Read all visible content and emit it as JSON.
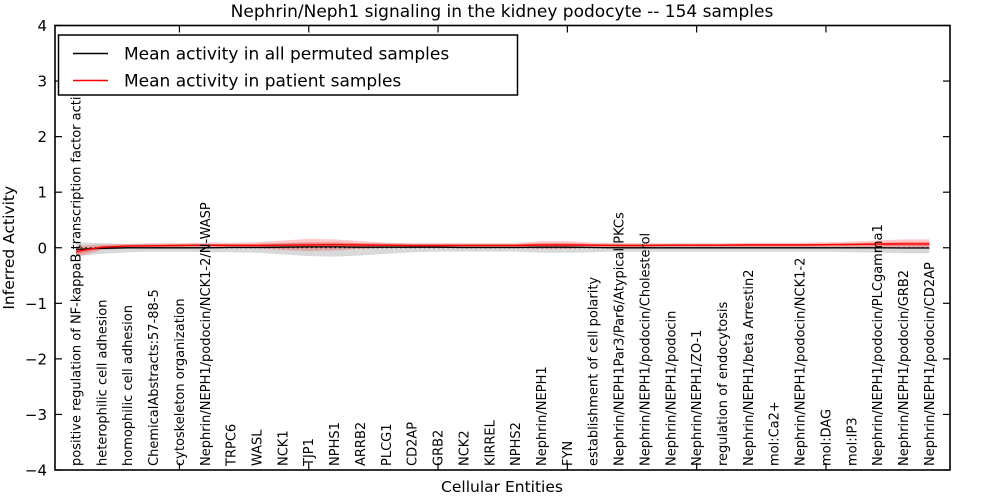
{
  "chart_data": {
    "type": "line",
    "title": "Nephrin/Neph1 signaling in the kidney podocyte -- 154 samples",
    "xlabel": "Cellular Entities",
    "ylabel": "Inferred Activity",
    "ylim": [
      -4,
      4
    ],
    "ytick_labels": [
      "4",
      "3",
      "2",
      "1",
      "0",
      "−1",
      "−2",
      "−3",
      "−4"
    ],
    "xtick_mark_indices": [
      4,
      9,
      14,
      19,
      24,
      29
    ],
    "grid": false,
    "zero_line": {
      "style": "dotted",
      "color": "#000000",
      "y": 0
    },
    "categories": [
      "positive regulation of NF-kappaB transcription factor activity",
      "heterophilic cell adhesion",
      "homophilic cell adhesion",
      "ChemicalAbstracts:57-88-5",
      "cytoskeleton organization",
      "Nephrin/NEPH1/podocin/NCK1-2/N-WASP",
      "TRPC6",
      "WASL",
      "NCK1",
      "TJP1",
      "NPHS1",
      "ARRB2",
      "PLCG1",
      "CD2AP",
      "GRB2",
      "NCK2",
      "KIRREL",
      "NPHS2",
      "Nephrin/NEPH1",
      "FYN",
      "establishment of cell polarity",
      "Nephrin/NEPH1Par3/Par6/Atypical PKCs",
      "Nephrin/NEPH1/podocin/Cholesterol",
      "Nephrin/NEPH1/podocin",
      "Nephrin/NEPH1/ZO-1",
      "regulation of endocytosis",
      "Nephrin/NEPH1/beta Arrestin2",
      "mol:Ca2+",
      "Nephrin/NEPH1/podocin/NCK1-2",
      "mol:DAG",
      "mol:IP3",
      "Nephrin/NEPH1/podocin/PLCgamma1",
      "Nephrin/NEPH1/podocin/GRB2",
      "Nephrin/NEPH1/podocin/CD2AP"
    ],
    "series": [
      {
        "name": "Mean activity in all permuted samples",
        "color": "#000000",
        "values": [
          -0.03,
          -0.01,
          0.0,
          0.0,
          0.0,
          0.0,
          0.005,
          0.005,
          0.01,
          0.015,
          0.015,
          0.01,
          0.01,
          0.01,
          0.01,
          0.005,
          0.005,
          0.005,
          0.01,
          0.01,
          0.005,
          0.0,
          0.0,
          0.0,
          0.0,
          0.0,
          0.0,
          0.0,
          0.0,
          0.0,
          0.0,
          0.0,
          -0.005,
          -0.005
        ]
      },
      {
        "name": "Mean activity in patient samples",
        "color": "#ff0000",
        "values": [
          -0.07,
          0.01,
          0.03,
          0.035,
          0.04,
          0.045,
          0.04,
          0.04,
          0.045,
          0.05,
          0.055,
          0.05,
          0.045,
          0.04,
          0.04,
          0.04,
          0.04,
          0.04,
          0.05,
          0.05,
          0.045,
          0.04,
          0.04,
          0.045,
          0.045,
          0.045,
          0.05,
          0.05,
          0.05,
          0.055,
          0.06,
          0.065,
          0.07,
          0.07
        ]
      }
    ],
    "bands": [
      {
        "name": "permuted-samples-spread",
        "color": "rgba(128,128,128,0.30)",
        "upper": [
          0.1,
          0.08,
          0.07,
          0.07,
          0.07,
          0.07,
          0.07,
          0.07,
          0.08,
          0.09,
          0.09,
          0.08,
          0.08,
          0.07,
          0.07,
          0.07,
          0.07,
          0.07,
          0.08,
          0.08,
          0.07,
          0.07,
          0.07,
          0.07,
          0.07,
          0.07,
          0.07,
          0.07,
          0.07,
          0.07,
          0.08,
          0.08,
          0.09,
          0.09
        ],
        "lower": [
          -0.15,
          -0.11,
          -0.08,
          -0.07,
          -0.07,
          -0.08,
          -0.08,
          -0.09,
          -0.12,
          -0.15,
          -0.16,
          -0.14,
          -0.11,
          -0.08,
          -0.07,
          -0.07,
          -0.07,
          -0.07,
          -0.09,
          -0.09,
          -0.08,
          -0.07,
          -0.07,
          -0.07,
          -0.07,
          -0.07,
          -0.07,
          -0.07,
          -0.07,
          -0.07,
          -0.08,
          -0.09,
          -0.1,
          -0.1
        ]
      },
      {
        "name": "patient-samples-spread",
        "color": "rgba(255,0,0,0.22)",
        "upper": [
          0.03,
          0.06,
          0.07,
          0.08,
          0.08,
          0.09,
          0.09,
          0.1,
          0.13,
          0.16,
          0.15,
          0.12,
          0.09,
          0.08,
          0.08,
          0.08,
          0.08,
          0.08,
          0.12,
          0.12,
          0.09,
          0.08,
          0.08,
          0.08,
          0.08,
          0.08,
          0.09,
          0.09,
          0.09,
          0.1,
          0.11,
          0.13,
          0.15,
          0.15
        ],
        "lower": [
          -0.17,
          -0.04,
          -0.01,
          0.0,
          0.0,
          0.0,
          0.0,
          -0.01,
          -0.04,
          -0.06,
          -0.05,
          -0.02,
          0.0,
          0.0,
          0.0,
          0.0,
          0.0,
          0.0,
          -0.02,
          -0.02,
          0.0,
          0.0,
          0.01,
          0.01,
          0.01,
          0.01,
          0.01,
          0.01,
          0.01,
          0.01,
          0.01,
          0.0,
          -0.01,
          -0.01
        ]
      }
    ],
    "legend": {
      "position": "upper left",
      "entries": [
        {
          "label": "Mean activity in all permuted samples",
          "color": "#000000"
        },
        {
          "label": "Mean activity in patient samples",
          "color": "#ff0000"
        }
      ]
    }
  }
}
